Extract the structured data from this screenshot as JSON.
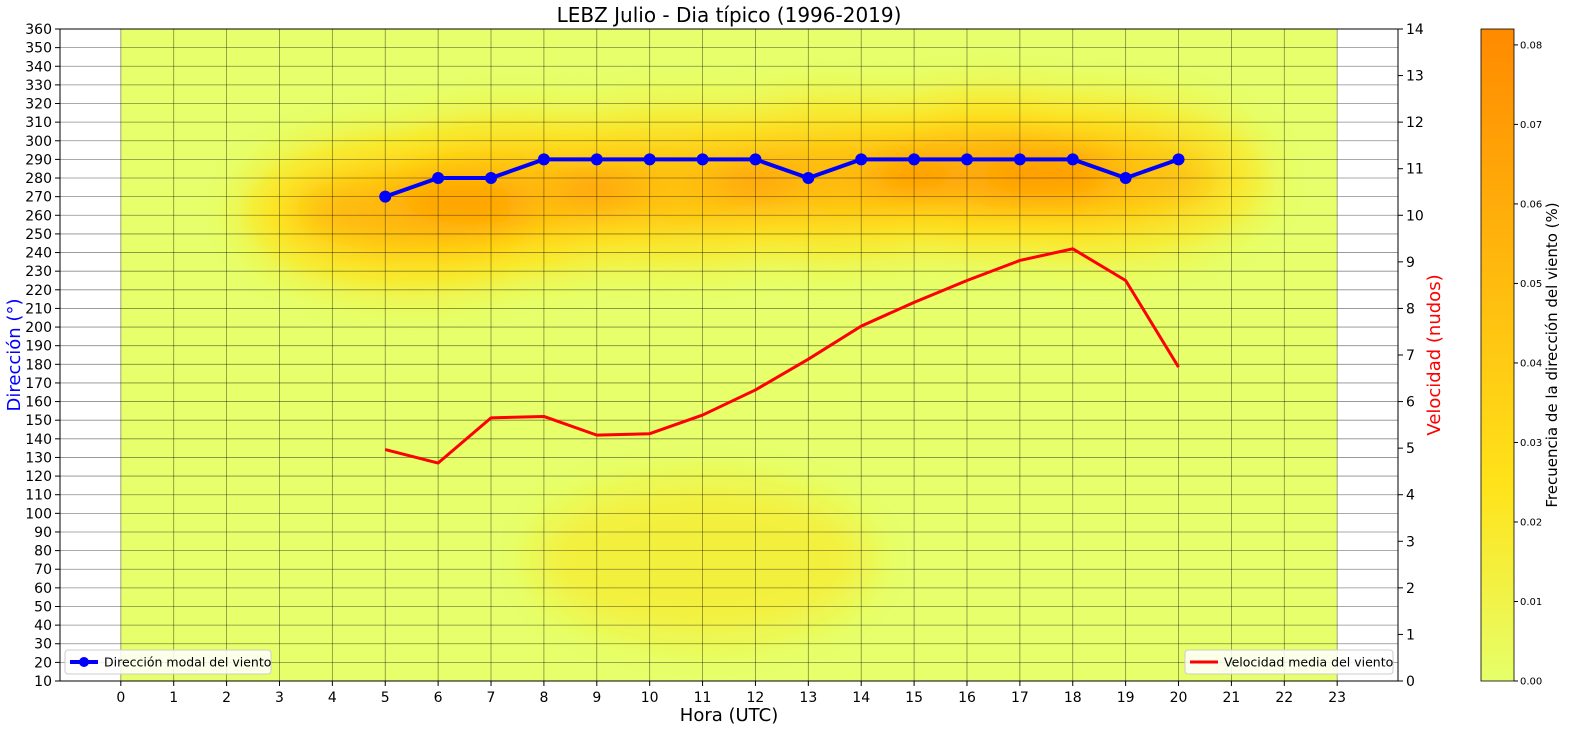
{
  "chart_data": {
    "type": "line",
    "title": "LEBZ Julio - Dia típico (1996-2019)",
    "xlabel": "Hora (UTC)",
    "x_ticks": [
      0,
      1,
      2,
      3,
      4,
      5,
      6,
      7,
      8,
      9,
      10,
      11,
      12,
      13,
      14,
      15,
      16,
      17,
      18,
      19,
      20,
      21,
      22,
      23
    ],
    "xlim": [
      -1.15,
      24.15
    ],
    "left_axis": {
      "label": "Dirección  (°)",
      "label_color": "#0000ff",
      "ylim": [
        10,
        360
      ],
      "ticks": [
        10,
        20,
        30,
        40,
        50,
        60,
        70,
        80,
        90,
        100,
        110,
        120,
        130,
        140,
        150,
        160,
        170,
        180,
        190,
        200,
        210,
        220,
        230,
        240,
        250,
        260,
        270,
        280,
        290,
        300,
        310,
        320,
        330,
        340,
        350,
        360
      ]
    },
    "right_axis": {
      "label": "Velocidad (nudos)",
      "label_color": "#ff0000",
      "ylim": [
        0,
        14
      ],
      "ticks": [
        0,
        1,
        2,
        3,
        4,
        5,
        6,
        7,
        8,
        9,
        10,
        11,
        12,
        13,
        14
      ]
    },
    "series": [
      {
        "name": "Dirección modal del viento",
        "axis": "left",
        "color": "#0000ff",
        "marker": "circle",
        "x": [
          5,
          6,
          7,
          8,
          9,
          10,
          11,
          12,
          13,
          14,
          15,
          16,
          17,
          18,
          19,
          20
        ],
        "values": [
          270,
          280,
          280,
          290,
          290,
          290,
          290,
          290,
          280,
          290,
          290,
          290,
          290,
          290,
          280,
          290
        ]
      },
      {
        "name": "Velocidad media del viento",
        "axis": "right",
        "color": "#ff0000",
        "marker": "none",
        "x": [
          5,
          6,
          7,
          8,
          9,
          10,
          11,
          12,
          13,
          14,
          15,
          16,
          17,
          18,
          19,
          20
        ],
        "values": [
          4.97,
          4.68,
          5.65,
          5.68,
          5.28,
          5.31,
          5.71,
          6.25,
          6.91,
          7.62,
          8.13,
          8.6,
          9.03,
          9.28,
          8.6,
          6.74
        ]
      }
    ],
    "heatmap": {
      "x_range": [
        0,
        23
      ],
      "y_range": [
        10,
        360
      ],
      "color_min": "#e6ff6a",
      "color_mid": "#ffe31a",
      "color_max": "#ff8a00",
      "hotspots": [
        {
          "hour": 5.5,
          "dir": 262,
          "intensity": 0.65
        },
        {
          "hour": 7.5,
          "dir": 272,
          "intensity": 0.6
        },
        {
          "hour": 10.5,
          "dir": 276,
          "intensity": 0.55
        },
        {
          "hour": 13.5,
          "dir": 280,
          "intensity": 0.6
        },
        {
          "hour": 16.5,
          "dir": 283,
          "intensity": 0.82
        },
        {
          "hour": 18.5,
          "dir": 280,
          "intensity": 0.55
        },
        {
          "hour": 11,
          "dir": 75,
          "intensity": 0.28
        }
      ]
    },
    "colorbar": {
      "label": "Frecuencia de la dirección del viento (%)",
      "range": [
        0,
        0.082
      ],
      "ticks": [
        "0.00",
        "0.01",
        "0.02",
        "0.03",
        "0.04",
        "0.05",
        "0.06",
        "0.07",
        "0.08"
      ]
    },
    "legends": [
      {
        "series": "Dirección modal del viento",
        "position": "lower-left"
      },
      {
        "series": "Velocidad media del viento",
        "position": "lower-right"
      }
    ],
    "grid": true
  }
}
